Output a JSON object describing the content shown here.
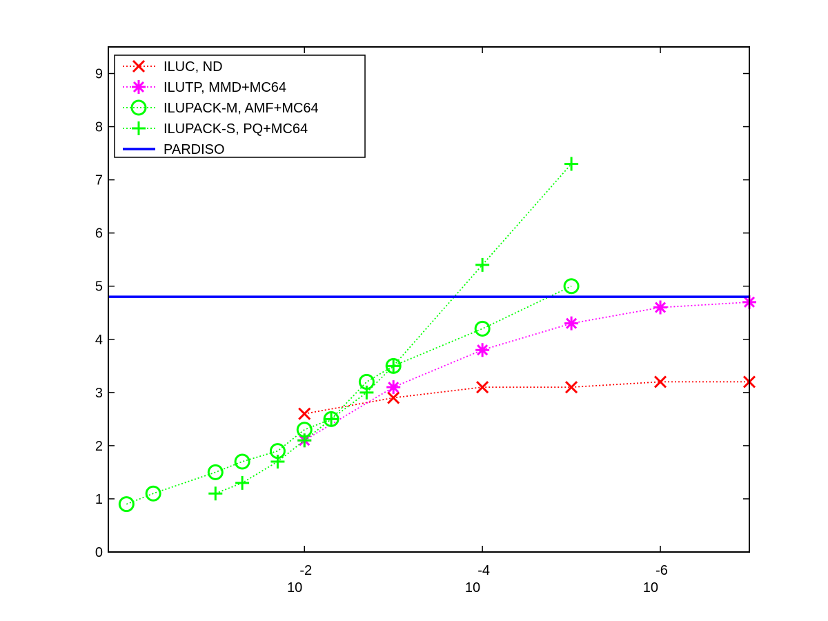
{
  "chart_data": {
    "type": "line",
    "title": "",
    "xlabel": "",
    "ylabel": "",
    "x_scale": "log-reversed",
    "xlim": [
      1.6,
      1e-07
    ],
    "ylim": [
      0,
      9.5
    ],
    "grid": false,
    "legend_position": "top-left",
    "y_ticks": [
      0,
      1,
      2,
      3,
      4,
      5,
      6,
      7,
      8,
      9
    ],
    "x_ticks": [
      {
        "value": 0.01,
        "base": "10",
        "exponent": "-2"
      },
      {
        "value": 0.0001,
        "base": "10",
        "exponent": "-4"
      },
      {
        "value": 1e-06,
        "base": "10",
        "exponent": "-6"
      }
    ],
    "series": [
      {
        "name": "ILUC,  ND",
        "color": "#ff0000",
        "marker": "x",
        "line_style": "dotted",
        "x": [
          0.01,
          0.001,
          0.0001,
          1e-05,
          1e-06,
          1e-07
        ],
        "y": [
          2.6,
          2.9,
          3.1,
          3.1,
          3.2,
          3.2
        ]
      },
      {
        "name": "ILUTP, MMD+MC64",
        "color": "#ff00ff",
        "marker": "asterisk",
        "line_style": "dotted",
        "x": [
          0.01,
          0.001,
          0.0001,
          1e-05,
          1e-06,
          1e-07
        ],
        "y": [
          2.1,
          3.1,
          3.8,
          4.3,
          4.6,
          4.7
        ]
      },
      {
        "name": "ILUPACK-M, AMF+MC64",
        "color": "#00ff00",
        "marker": "circle",
        "line_style": "dotted",
        "x": [
          1.0,
          0.5,
          0.1,
          0.05,
          0.02,
          0.01,
          0.005,
          0.002,
          0.001,
          0.0001,
          1e-05
        ],
        "y": [
          0.9,
          1.1,
          1.5,
          1.7,
          1.9,
          2.3,
          2.5,
          3.2,
          3.5,
          4.2,
          5.0
        ]
      },
      {
        "name": "ILUPACK-S, PQ+MC64",
        "color": "#00ff00",
        "marker": "plus",
        "line_style": "dotted",
        "x": [
          0.1,
          0.05,
          0.02,
          0.01,
          0.005,
          0.002,
          0.001,
          0.0001,
          1e-05
        ],
        "y": [
          1.1,
          1.3,
          1.7,
          2.1,
          2.5,
          3.0,
          3.5,
          5.4,
          7.3
        ]
      },
      {
        "name": "PARDISO",
        "color": "#0000ff",
        "marker": "none",
        "line_style": "solid",
        "constant_y": 4.8
      }
    ]
  }
}
